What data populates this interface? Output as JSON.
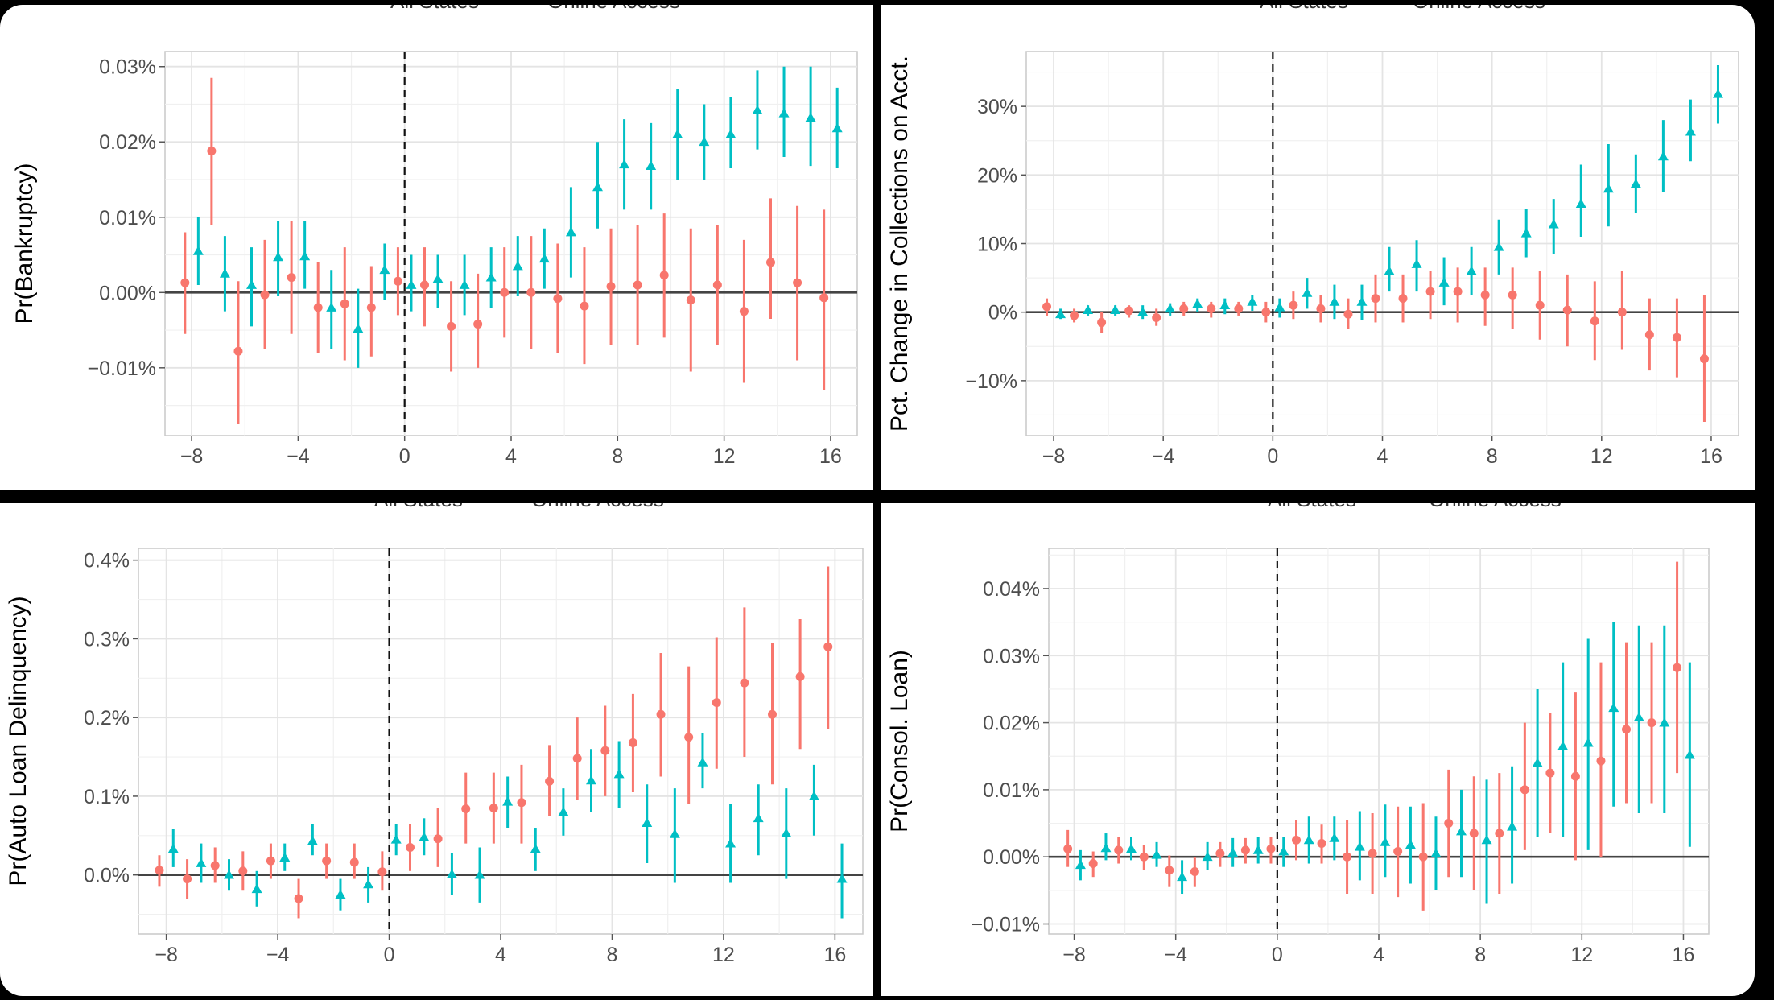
{
  "figure": {
    "legend_series": [
      "All States",
      "Online Access"
    ],
    "colors": {
      "all_states": "#F8766D",
      "online_access": "#00BFC4"
    }
  },
  "chart_data": [
    {
      "type": "scatter",
      "title": "",
      "xlabel": "",
      "ylabel": "Pr(Bankruptcy)",
      "xlim": [
        -9,
        17
      ],
      "ylim": [
        -0.019,
        0.032
      ],
      "xticks": [
        -8,
        -4,
        0,
        4,
        8,
        12,
        16
      ],
      "xtick_labels": [
        "−8",
        "−4",
        "0",
        "4",
        "8",
        "12",
        "16"
      ],
      "yticks": [
        -0.01,
        0,
        0.01,
        0.02,
        0.03
      ],
      "ytick_labels": [
        "−0.01%",
        "0.00%",
        "0.01%",
        "0.02%",
        "0.03%"
      ],
      "x_offset": 0.25,
      "series": [
        {
          "name": "All States",
          "marker": "circle",
          "x": [
            -8,
            -7,
            -6,
            -5,
            -4,
            -3,
            -2,
            -1,
            0,
            1,
            2,
            3,
            4,
            5,
            6,
            7,
            8,
            9,
            10,
            11,
            12,
            13,
            14,
            15,
            16
          ],
          "values": [
            0.0013,
            0.0188,
            -0.0078,
            -0.0003,
            0.002,
            -0.002,
            -0.0015,
            -0.002,
            0.0015,
            0.001,
            -0.0045,
            -0.0042,
            0.0,
            0.0,
            -0.0008,
            -0.0018,
            0.0008,
            0.001,
            0.0023,
            -0.001,
            0.001,
            -0.0025,
            0.004,
            0.0013,
            -0.0007
          ],
          "lower": [
            -0.0055,
            0.009,
            -0.0175,
            -0.0075,
            -0.0055,
            -0.008,
            -0.009,
            -0.0085,
            -0.003,
            -0.0045,
            -0.0105,
            -0.01,
            -0.006,
            -0.0075,
            -0.008,
            -0.0095,
            -0.007,
            -0.007,
            -0.006,
            -0.0105,
            -0.007,
            -0.012,
            -0.0035,
            -0.009,
            -0.013
          ],
          "upper": [
            0.008,
            0.0285,
            0.0015,
            0.007,
            0.0095,
            0.004,
            0.006,
            0.0035,
            0.006,
            0.006,
            0.0015,
            0.0025,
            0.006,
            0.0075,
            0.0065,
            0.006,
            0.0085,
            0.009,
            0.0105,
            0.0085,
            0.009,
            0.007,
            0.0125,
            0.0115,
            0.011
          ]
        },
        {
          "name": "Online Access",
          "marker": "triangle",
          "x": [
            -8,
            -7,
            -6,
            -5,
            -4,
            -3,
            -2,
            -1,
            0,
            1,
            2,
            3,
            4,
            5,
            6,
            7,
            8,
            9,
            10,
            11,
            12,
            13,
            14,
            15,
            16
          ],
          "values": [
            0.0055,
            0.0025,
            0.001,
            0.0047,
            0.0048,
            -0.002,
            -0.0048,
            0.003,
            0.001,
            0.0018,
            0.001,
            0.002,
            0.0035,
            0.0045,
            0.008,
            0.014,
            0.017,
            0.0168,
            0.021,
            0.02,
            0.021,
            0.0242,
            0.0238,
            0.0232,
            0.0218
          ],
          "lower": [
            0.001,
            -0.0025,
            -0.0045,
            -0.0005,
            0.0005,
            -0.0075,
            -0.01,
            -0.001,
            -0.0025,
            -0.002,
            -0.003,
            -0.002,
            -0.0005,
            0.0005,
            0.002,
            0.0085,
            0.011,
            0.011,
            0.015,
            0.015,
            0.0165,
            0.019,
            0.018,
            0.0168,
            0.0165
          ],
          "upper": [
            0.01,
            0.0075,
            0.006,
            0.0095,
            0.0095,
            0.003,
            0.0005,
            0.0065,
            0.005,
            0.005,
            0.005,
            0.006,
            0.0075,
            0.0085,
            0.014,
            0.02,
            0.023,
            0.0225,
            0.027,
            0.025,
            0.026,
            0.0295,
            0.03,
            0.03,
            0.0272
          ]
        }
      ]
    },
    {
      "type": "scatter",
      "title": "",
      "xlabel": "",
      "ylabel": "Pct. Change in Collections on Acct.",
      "xlim": [
        -9,
        17
      ],
      "ylim": [
        -18,
        38
      ],
      "xticks": [
        -8,
        -4,
        0,
        4,
        8,
        12,
        16
      ],
      "xtick_labels": [
        "−8",
        "−4",
        "0",
        "4",
        "8",
        "12",
        "16"
      ],
      "yticks": [
        -10,
        0,
        10,
        20,
        30
      ],
      "ytick_labels": [
        "−10%",
        "0%",
        "10%",
        "20%",
        "30%"
      ],
      "x_offset": 0.25,
      "series": [
        {
          "name": "All States",
          "marker": "circle",
          "x": [
            -8,
            -7,
            -6,
            -5,
            -4,
            -3,
            -2,
            -1,
            0,
            1,
            2,
            3,
            4,
            5,
            6,
            7,
            8,
            9,
            10,
            11,
            12,
            13,
            14,
            15,
            16
          ],
          "values": [
            0.8,
            -0.5,
            -1.5,
            0.2,
            -0.8,
            0.5,
            0.5,
            0.5,
            0.0,
            1.0,
            0.5,
            -0.3,
            2.0,
            2.0,
            3.0,
            3.0,
            2.5,
            2.5,
            1.0,
            0.3,
            -1.3,
            0.0,
            -3.3,
            -3.7,
            -6.8
          ],
          "lower": [
            -0.5,
            -1.5,
            -3.0,
            -0.8,
            -2.0,
            -0.5,
            -0.8,
            -0.5,
            -1.5,
            -1.0,
            -1.5,
            -2.5,
            -1.5,
            -1.5,
            -1.0,
            -1.5,
            -2.0,
            -2.5,
            -4.0,
            -5.0,
            -7.0,
            -5.5,
            -8.5,
            -9.5,
            -16.0
          ],
          "upper": [
            2.0,
            0.5,
            0.0,
            1.0,
            0.5,
            1.5,
            1.5,
            1.5,
            1.5,
            3.0,
            2.5,
            2.0,
            5.5,
            5.5,
            6.0,
            6.5,
            6.5,
            6.5,
            6.0,
            5.5,
            4.5,
            6.0,
            2.0,
            2.0,
            2.5
          ]
        },
        {
          "name": "Online Access",
          "marker": "triangle",
          "x": [
            -8,
            -7,
            -6,
            -5,
            -4,
            -3,
            -2,
            -1,
            0,
            1,
            2,
            3,
            4,
            5,
            6,
            7,
            8,
            9,
            10,
            11,
            12,
            13,
            14,
            15,
            16
          ],
          "values": [
            -0.3,
            0.3,
            0.3,
            0.0,
            0.5,
            1.2,
            1.0,
            1.5,
            0.7,
            2.8,
            1.5,
            1.5,
            6.0,
            7.0,
            4.3,
            6.0,
            9.5,
            11.5,
            12.8,
            15.8,
            18.0,
            18.7,
            22.7,
            26.3,
            31.8
          ],
          "lower": [
            -1.0,
            -0.5,
            -0.5,
            -1.0,
            -0.5,
            0.0,
            -0.3,
            0.2,
            -0.8,
            0.5,
            -1.0,
            -1.2,
            3.0,
            3.0,
            1.0,
            2.5,
            5.5,
            8.0,
            8.5,
            11.0,
            12.5,
            14.5,
            17.5,
            22.0,
            27.5
          ],
          "upper": [
            0.5,
            1.0,
            1.0,
            1.0,
            1.3,
            2.0,
            2.0,
            2.5,
            2.0,
            5.0,
            4.0,
            4.0,
            9.5,
            10.5,
            8.0,
            9.5,
            13.5,
            15.0,
            16.5,
            21.5,
            24.5,
            23.0,
            28.0,
            31.0,
            36.0
          ]
        }
      ]
    },
    {
      "type": "scatter",
      "title": "",
      "xlabel": "",
      "ylabel": "Pr(Auto Loan Delinquency)",
      "xlim": [
        -9,
        17
      ],
      "ylim": [
        -0.075,
        0.415
      ],
      "xticks": [
        -8,
        -4,
        0,
        4,
        8,
        12,
        16
      ],
      "xtick_labels": [
        "−8",
        "−4",
        "0",
        "4",
        "8",
        "12",
        "16"
      ],
      "yticks": [
        0,
        0.1,
        0.2,
        0.3,
        0.4
      ],
      "ytick_labels": [
        "0.0%",
        "0.1%",
        "0.2%",
        "0.3%",
        "0.4%"
      ],
      "x_offset": 0.25,
      "series": [
        {
          "name": "All States",
          "marker": "circle",
          "x": [
            -8,
            -7,
            -6,
            -5,
            -4,
            -3,
            -2,
            -1,
            0,
            1,
            2,
            3,
            4,
            5,
            6,
            7,
            8,
            9,
            10,
            11,
            12,
            13,
            14,
            15,
            16
          ],
          "values": [
            0.006,
            -0.005,
            0.012,
            0.005,
            0.018,
            -0.03,
            0.018,
            0.016,
            0.004,
            0.035,
            0.046,
            0.084,
            0.085,
            0.092,
            0.119,
            0.148,
            0.158,
            0.168,
            0.204,
            0.175,
            0.219,
            0.244,
            0.204,
            0.252,
            0.29
          ],
          "lower": [
            -0.015,
            -0.03,
            -0.01,
            -0.02,
            -0.005,
            -0.055,
            -0.005,
            -0.005,
            -0.02,
            0.005,
            0.01,
            0.04,
            0.04,
            0.04,
            0.075,
            0.095,
            0.1,
            0.105,
            0.125,
            0.09,
            0.135,
            0.15,
            0.115,
            0.16,
            0.185
          ],
          "upper": [
            0.025,
            0.02,
            0.035,
            0.03,
            0.04,
            -0.005,
            0.04,
            0.04,
            0.03,
            0.065,
            0.085,
            0.13,
            0.13,
            0.14,
            0.165,
            0.2,
            0.215,
            0.23,
            0.282,
            0.265,
            0.302,
            0.34,
            0.295,
            0.325,
            0.392
          ]
        },
        {
          "name": "Online Access",
          "marker": "triangle",
          "x": [
            -8,
            -7,
            -6,
            -5,
            -4,
            -3,
            -2,
            -1,
            0,
            1,
            2,
            3,
            4,
            5,
            6,
            7,
            8,
            9,
            10,
            11,
            12,
            13,
            14,
            15,
            16
          ],
          "values": [
            0.033,
            0.015,
            0.0,
            -0.018,
            0.022,
            0.043,
            -0.025,
            -0.012,
            0.045,
            0.048,
            0.001,
            0.0,
            0.093,
            0.033,
            0.08,
            0.12,
            0.128,
            0.066,
            0.052,
            0.143,
            0.04,
            0.072,
            0.053,
            0.1,
            -0.005
          ],
          "lower": [
            0.01,
            -0.01,
            -0.02,
            -0.04,
            0.005,
            0.025,
            -0.045,
            -0.035,
            0.025,
            0.025,
            -0.025,
            -0.035,
            0.06,
            0.005,
            0.05,
            0.08,
            0.085,
            0.015,
            -0.01,
            0.11,
            -0.01,
            0.025,
            -0.005,
            0.05,
            -0.055
          ],
          "upper": [
            0.058,
            0.04,
            0.02,
            0.005,
            0.04,
            0.065,
            -0.005,
            0.01,
            0.065,
            0.072,
            0.028,
            0.035,
            0.125,
            0.06,
            0.11,
            0.16,
            0.17,
            0.115,
            0.11,
            0.18,
            0.09,
            0.115,
            0.11,
            0.14,
            0.04
          ]
        }
      ]
    },
    {
      "type": "scatter",
      "title": "",
      "xlabel": "",
      "ylabel": "Pr(Consol. Loan)",
      "xlim": [
        -9,
        17
      ],
      "ylim": [
        -0.0115,
        0.046
      ],
      "xticks": [
        -8,
        -4,
        0,
        4,
        8,
        12,
        16
      ],
      "xtick_labels": [
        "−8",
        "−4",
        "0",
        "4",
        "8",
        "12",
        "16"
      ],
      "yticks": [
        -0.01,
        0,
        0.01,
        0.02,
        0.03,
        0.04
      ],
      "ytick_labels": [
        "−0.01%",
        "0.00%",
        "0.01%",
        "0.02%",
        "0.03%",
        "0.04%"
      ],
      "x_offset": 0.25,
      "series": [
        {
          "name": "All States",
          "marker": "circle",
          "x": [
            -8,
            -7,
            -6,
            -5,
            -4,
            -3,
            -2,
            -1,
            0,
            1,
            2,
            3,
            4,
            5,
            6,
            7,
            8,
            9,
            10,
            11,
            12,
            13,
            14,
            15,
            16
          ],
          "values": [
            0.0012,
            -0.001,
            0.001,
            0.0,
            -0.002,
            -0.0022,
            0.0005,
            0.001,
            0.0012,
            0.0025,
            0.002,
            0.0,
            0.0005,
            0.0008,
            0.0,
            0.005,
            0.0035,
            0.0035,
            0.01,
            0.0125,
            0.012,
            0.0143,
            0.019,
            0.02,
            0.0282
          ],
          "lower": [
            -0.0015,
            -0.003,
            -0.001,
            -0.002,
            -0.0045,
            -0.0045,
            -0.0015,
            -0.001,
            -0.001,
            -0.0005,
            -0.001,
            -0.0055,
            -0.0055,
            -0.006,
            -0.008,
            -0.003,
            -0.005,
            -0.0055,
            0.001,
            0.0035,
            -0.0005,
            0.0,
            0.008,
            0.008,
            0.0125
          ],
          "upper": [
            0.004,
            0.0008,
            0.003,
            0.0018,
            0.0002,
            0.0,
            0.0022,
            0.0028,
            0.003,
            0.0055,
            0.0048,
            0.0055,
            0.0065,
            0.0075,
            0.008,
            0.013,
            0.012,
            0.0125,
            0.02,
            0.0215,
            0.0245,
            0.029,
            0.032,
            0.032,
            0.044
          ]
        },
        {
          "name": "Online Access",
          "marker": "triangle",
          "x": [
            -8,
            -7,
            -6,
            -5,
            -4,
            -3,
            -2,
            -1,
            0,
            1,
            2,
            3,
            4,
            5,
            6,
            7,
            8,
            9,
            10,
            11,
            12,
            13,
            14,
            15,
            16
          ],
          "values": [
            -0.0012,
            0.0013,
            0.0012,
            0.0003,
            -0.003,
            0.0,
            0.0006,
            0.001,
            0.0008,
            0.0025,
            0.0028,
            0.0015,
            0.0022,
            0.0018,
            0.0005,
            0.0038,
            0.0025,
            0.0045,
            0.014,
            0.0165,
            0.017,
            0.0222,
            0.0208,
            0.02,
            0.0152
          ],
          "lower": [
            -0.0035,
            -0.0005,
            -0.0005,
            -0.0015,
            -0.0055,
            -0.002,
            -0.0015,
            -0.001,
            -0.0015,
            -0.001,
            -0.0005,
            -0.0035,
            -0.003,
            -0.004,
            -0.005,
            -0.003,
            -0.007,
            -0.004,
            0.003,
            0.003,
            0.001,
            0.0075,
            0.0065,
            0.0065,
            0.0015
          ],
          "upper": [
            0.001,
            0.0035,
            0.003,
            0.0022,
            -0.0005,
            0.0022,
            0.0028,
            0.003,
            0.003,
            0.006,
            0.006,
            0.0068,
            0.0078,
            0.0075,
            0.006,
            0.01,
            0.0115,
            0.0135,
            0.025,
            0.029,
            0.0325,
            0.035,
            0.0345,
            0.0345,
            0.029
          ]
        }
      ]
    }
  ]
}
